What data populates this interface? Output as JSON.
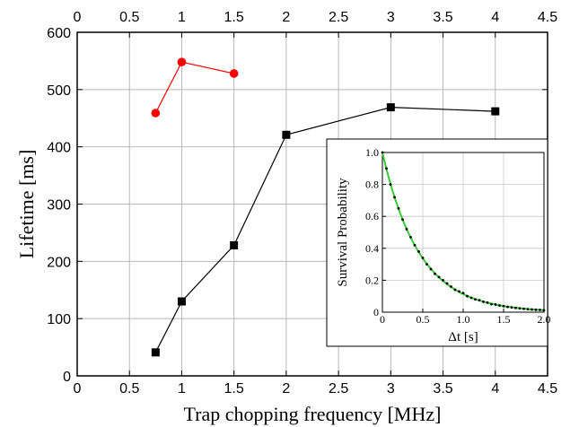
{
  "chart_data": [
    {
      "type": "line",
      "xlabel": "Trap chopping frequency [MHz]",
      "ylabel": "Lifetime [ms]",
      "xlim": [
        0,
        4.5
      ],
      "ylim": [
        0,
        600
      ],
      "x_ticks": [
        "0",
        "0.5",
        "1",
        "1.5",
        "2",
        "2.5",
        "3",
        "3.5",
        "4",
        "4.5"
      ],
      "y_ticks": [
        "0",
        "100",
        "200",
        "300",
        "400",
        "500",
        "600"
      ],
      "grid": true,
      "top_axis_ticks": true,
      "series": [
        {
          "color": "#000000",
          "marker": "square",
          "x": [
            0.75,
            1.0,
            1.5,
            2.0,
            3.0,
            4.0
          ],
          "y": [
            41,
            130,
            228,
            421,
            469,
            462
          ]
        },
        {
          "color": "#ff0000",
          "marker": "circle",
          "x": [
            0.75,
            1.0,
            1.5
          ],
          "y": [
            459,
            548,
            528
          ]
        }
      ]
    },
    {
      "type": "scatter",
      "xlabel": "Δt  [s]",
      "ylabel": "Survival Probability",
      "xlim": [
        0,
        2.0
      ],
      "ylim": [
        0,
        1.0
      ],
      "x_ticks": [
        "0",
        "0.5",
        "1.0",
        "1.5",
        "2.0"
      ],
      "y_ticks": [
        "0",
        "0.2",
        "0.4",
        "0.6",
        "0.8",
        "1.0"
      ],
      "fit": {
        "color": "#33cc33",
        "model": "exponential decay",
        "tau": 0.46
      },
      "points_color": "#000000",
      "series": [
        {
          "x": [
            0.0,
            0.05,
            0.1,
            0.15,
            0.2,
            0.25,
            0.3,
            0.35,
            0.4,
            0.45,
            0.5,
            0.55,
            0.6,
            0.65,
            0.7,
            0.75,
            0.8,
            0.85,
            0.9,
            0.95,
            1.0,
            1.05,
            1.1,
            1.15,
            1.2,
            1.25,
            1.3,
            1.35,
            1.4,
            1.45,
            1.5,
            1.55,
            1.6,
            1.65,
            1.7,
            1.75,
            1.8,
            1.85,
            1.9,
            1.95,
            2.0
          ],
          "y": [
            1.0,
            0.9,
            0.8,
            0.72,
            0.65,
            0.58,
            0.52,
            0.47,
            0.42,
            0.38,
            0.34,
            0.3,
            0.27,
            0.24,
            0.22,
            0.2,
            0.18,
            0.16,
            0.14,
            0.13,
            0.12,
            0.1,
            0.09,
            0.08,
            0.075,
            0.065,
            0.06,
            0.05,
            0.048,
            0.042,
            0.038,
            0.033,
            0.03,
            0.027,
            0.024,
            0.021,
            0.019,
            0.017,
            0.015,
            0.014,
            0.012
          ]
        }
      ]
    }
  ]
}
